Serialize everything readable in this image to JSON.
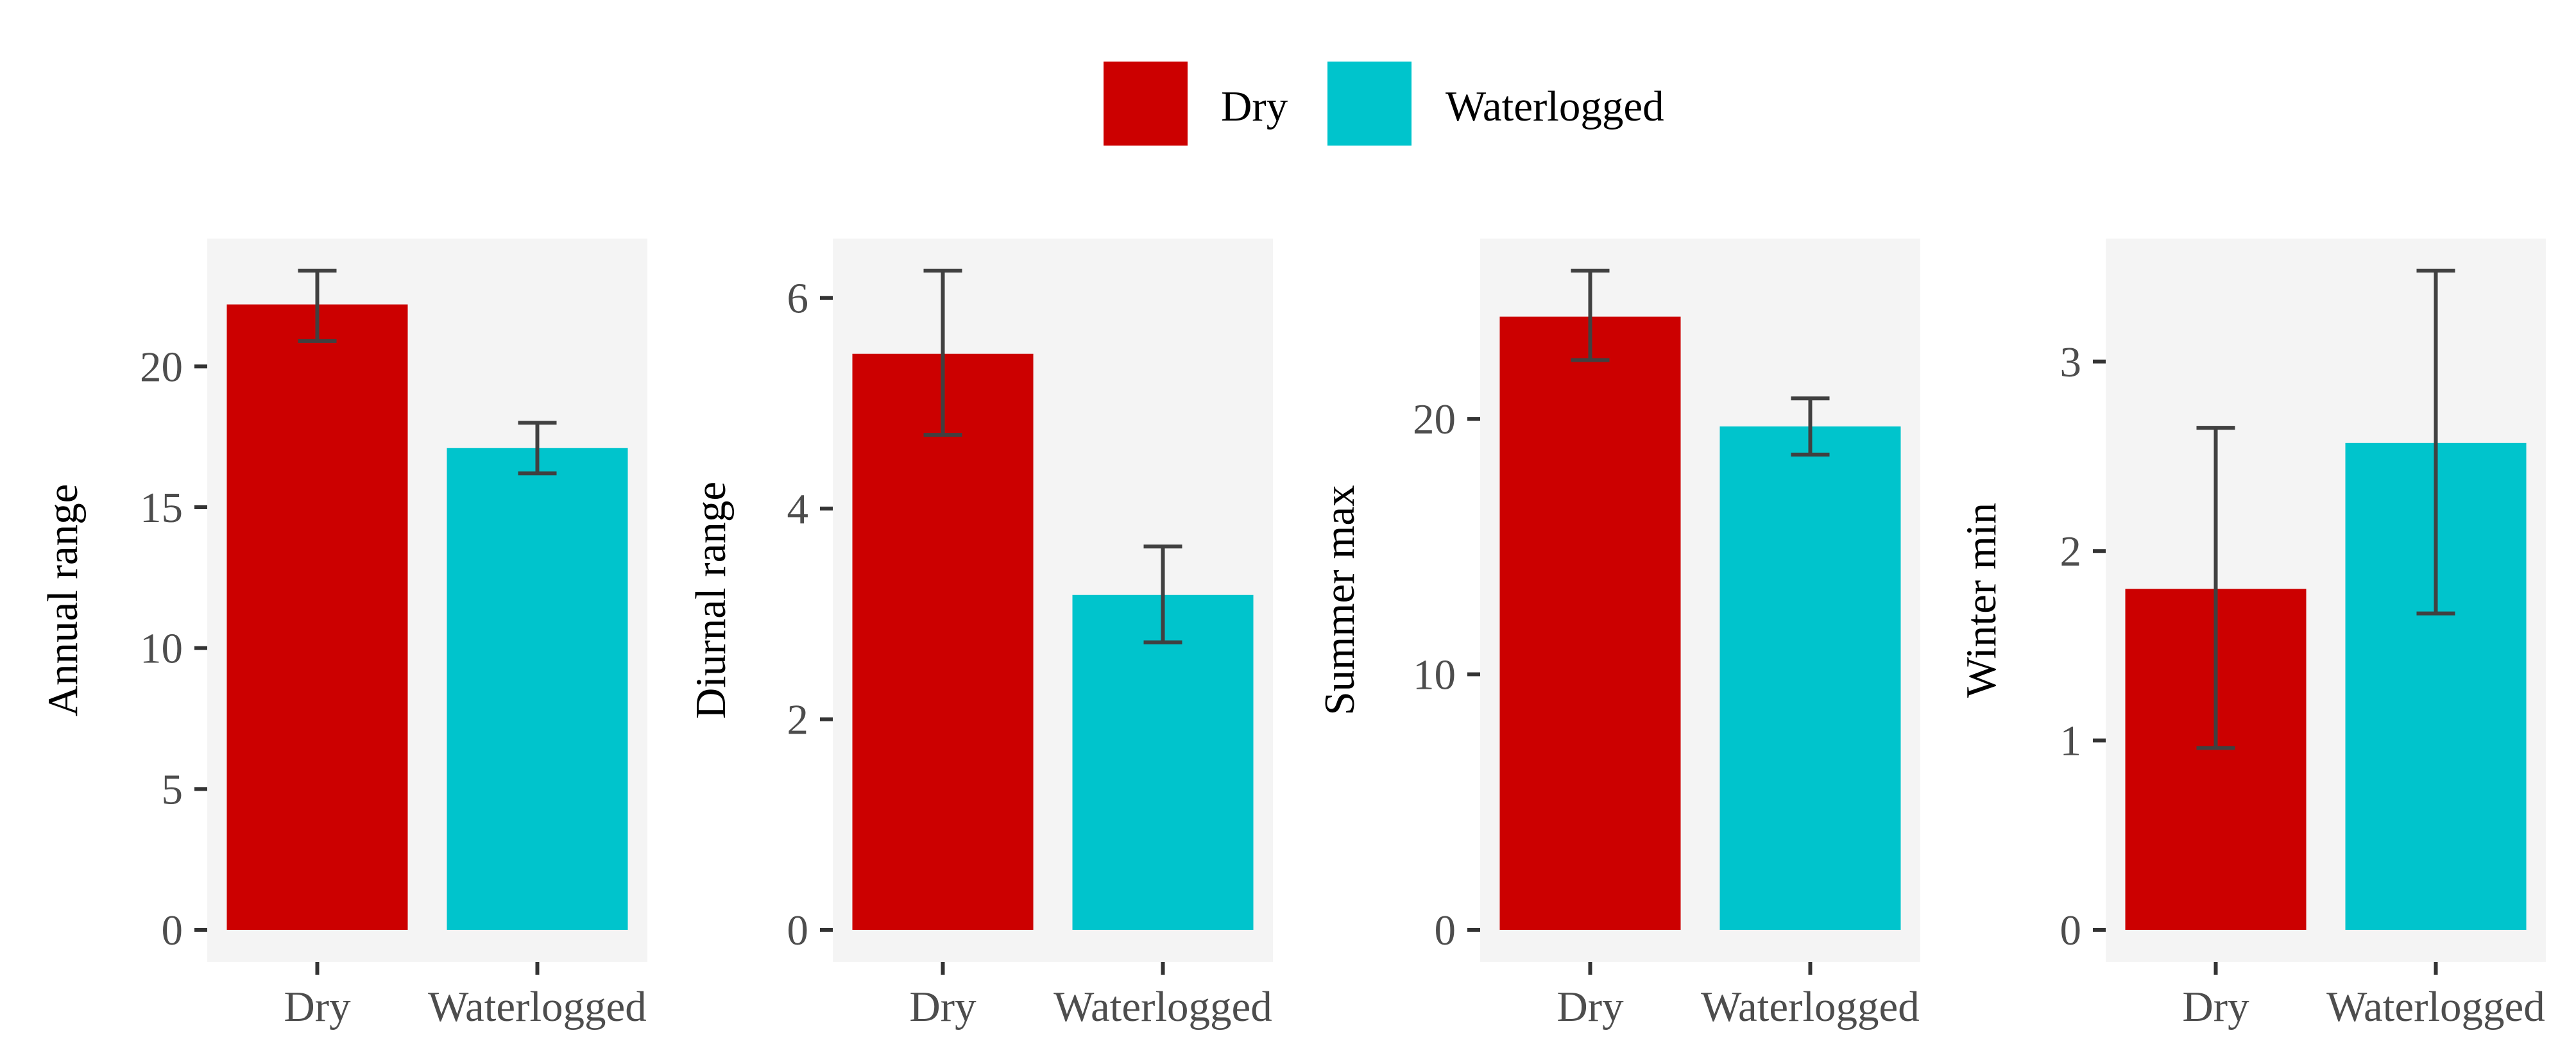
{
  "colors": {
    "Dry": "#cc0000",
    "Waterlogged": "#00c4cc",
    "panel_background": "#f4f4f4",
    "error_bar": "#404040",
    "tick": "#333333"
  },
  "legend": {
    "position": "top",
    "items": [
      {
        "label": "Dry",
        "color_key": "Dry"
      },
      {
        "label": "Waterlogged",
        "color_key": "Waterlogged"
      }
    ]
  },
  "chart_data": [
    {
      "type": "bar",
      "ylabel": "Annual range",
      "xlabel": "",
      "categories": [
        "Dry",
        "Waterlogged"
      ],
      "values": [
        22.2,
        17.1
      ],
      "error_low": [
        20.9,
        16.2
      ],
      "error_high": [
        23.4,
        18.0
      ],
      "ylim": [
        0,
        23.4
      ],
      "yticks": [
        0,
        5,
        10,
        15,
        20
      ],
      "ytick_labels": [
        "0",
        "5",
        "10",
        "15",
        "20"
      ],
      "grid": false
    },
    {
      "type": "bar",
      "ylabel": "Diurnal range",
      "xlabel": "",
      "categories": [
        "Dry",
        "Waterlogged"
      ],
      "values": [
        5.47,
        3.18
      ],
      "error_low": [
        4.7,
        2.73
      ],
      "error_high": [
        6.26,
        3.64
      ],
      "ylim": [
        0,
        6.26
      ],
      "yticks": [
        0,
        2,
        4,
        6
      ],
      "ytick_labels": [
        "0",
        "2",
        "4",
        "6"
      ],
      "grid": false
    },
    {
      "type": "bar",
      "ylabel": "Summer max",
      "xlabel": "",
      "categories": [
        "Dry",
        "Waterlogged"
      ],
      "values": [
        24.0,
        19.7
      ],
      "error_low": [
        22.3,
        18.6
      ],
      "error_high": [
        25.8,
        20.8
      ],
      "ylim": [
        0,
        25.8
      ],
      "yticks": [
        0,
        10,
        20
      ],
      "ytick_labels": [
        "0",
        "10",
        "20"
      ],
      "grid": false
    },
    {
      "type": "bar",
      "ylabel": "Winter min",
      "xlabel": "",
      "categories": [
        "Dry",
        "Waterlogged"
      ],
      "values": [
        1.8,
        2.57
      ],
      "error_low": [
        0.96,
        1.67
      ],
      "error_high": [
        2.65,
        3.48
      ],
      "ylim": [
        0,
        3.48
      ],
      "yticks": [
        0,
        1,
        2,
        3
      ],
      "ytick_labels": [
        "0",
        "1",
        "2",
        "3"
      ],
      "grid": false
    }
  ]
}
